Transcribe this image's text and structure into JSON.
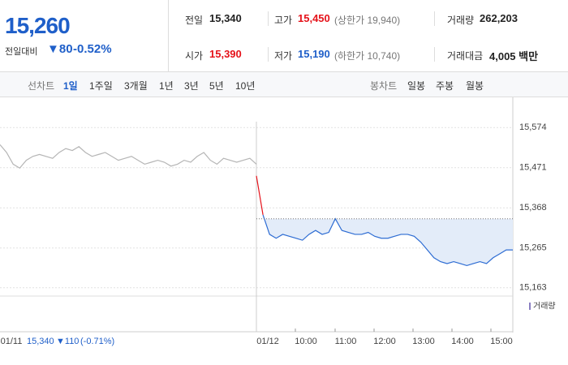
{
  "summary": {
    "price": "15,260",
    "change_label": "전일대비",
    "change": "▼80",
    "change_rate": "-0.52%"
  },
  "quotes": [
    {
      "label": "전일",
      "value": "15,340"
    },
    {
      "label": "고가",
      "value": "15,450",
      "note": "(상한가 19,940)"
    },
    {
      "label": "거래량",
      "value": "262,203"
    },
    {
      "label": "시가",
      "value": "15,390"
    },
    {
      "label": "저가",
      "value": "15,190",
      "note": "(하한가 10,740)"
    },
    {
      "label": "거래대금",
      "value": "4,005 백만"
    }
  ],
  "tabs": {
    "line_label": "선차트",
    "line_periods": [
      "1일",
      "1주일",
      "3개월",
      "1년",
      "3년",
      "5년",
      "10년"
    ],
    "candle_label": "봉차트",
    "candle_periods": [
      "일봉",
      "주봉",
      "월봉"
    ]
  },
  "chart_data": {
    "type": "line",
    "ylim": [
      15148,
      15589
    ],
    "yticks": [
      {
        "value": 15574,
        "label": "15,574"
      },
      {
        "value": 15471,
        "label": "15,471"
      },
      {
        "value": 15368,
        "label": "15,368"
      },
      {
        "value": 15265,
        "label": "15,265"
      },
      {
        "value": 15163,
        "label": "15,163"
      }
    ],
    "xtick_labels": [
      "01/11",
      "01/12",
      "10:00",
      "11:00",
      "12:00",
      "13:00",
      "14:00",
      "15:00"
    ],
    "base_value": 15340,
    "grid": true,
    "volume_label": "거래량",
    "footer": {
      "close": "15,340",
      "change": "▼110",
      "rate": "(-0.71%)"
    },
    "series": [
      {
        "color": "#b5b5b5",
        "values": [
          15530,
          15510,
          15480,
          15470,
          15490,
          15500,
          15505,
          15500,
          15495,
          15510,
          15520,
          15515,
          15525,
          15510,
          15500,
          15505,
          15510,
          15500,
          15490,
          15495,
          15500,
          15490,
          15480,
          15485,
          15490,
          15485,
          15475,
          15480,
          15490,
          15485,
          15500,
          15510,
          15490,
          15480,
          15495,
          15490,
          15485,
          15490,
          15495,
          15480
        ]
      },
      {
        "color": "#e5121a",
        "values": [
          15450,
          15350,
          null,
          null,
          null,
          null,
          null,
          null,
          null,
          null,
          null,
          null,
          null,
          null,
          null,
          null,
          null,
          null,
          null,
          null,
          null,
          null,
          null,
          null,
          null,
          null,
          null,
          null,
          null,
          null,
          null,
          null,
          null,
          null,
          null,
          null,
          null,
          null,
          null,
          null
        ]
      },
      {
        "color": "#2d6cd3",
        "area_color": "#e3ecf9",
        "values": [
          null,
          15350,
          15300,
          15290,
          15300,
          15295,
          15290,
          15285,
          15300,
          15310,
          15300,
          15305,
          15340,
          15310,
          15305,
          15300,
          15300,
          15305,
          15295,
          15290,
          15290,
          15295,
          15300,
          15300,
          15295,
          15280,
          15260,
          15240,
          15230,
          15225,
          15230,
          15225,
          15220,
          15225,
          15230,
          15225,
          15240,
          15250,
          15260,
          15260
        ]
      }
    ]
  }
}
